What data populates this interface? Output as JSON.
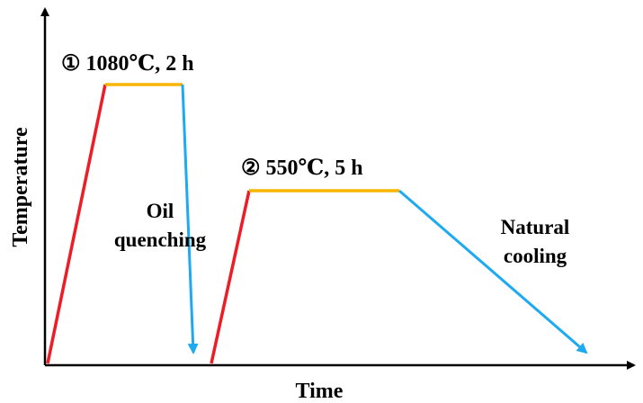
{
  "axes": {
    "x_label": "Time",
    "y_label": "Temperature"
  },
  "stage1": {
    "label": "① 1080℃, 2 h",
    "temperature": "1080℃",
    "duration": "2 h",
    "cooling_label_line1": "Oil",
    "cooling_label_line2": "quenching"
  },
  "stage2": {
    "label": "② 550℃, 5 h",
    "temperature": "550℃",
    "duration": "5 h",
    "cooling_label_line1": "Natural",
    "cooling_label_line2": "cooling"
  },
  "colors": {
    "heating": "#ee1c24",
    "holding": "#f7b500",
    "cooling": "#1eaaf1",
    "axis": "#000000"
  }
}
